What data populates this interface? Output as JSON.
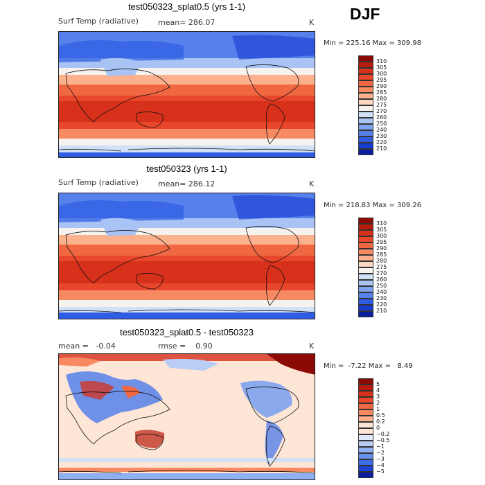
{
  "season": "DJF",
  "panels": [
    {
      "title": "test050323_splat0.5 (yrs 1-1)",
      "left_label": "Surf Temp (radiative)",
      "center_label": "mean= 286.07",
      "unit": "K",
      "minmax": "Min = 225.16 Max = 309.98",
      "colorbar": {
        "labels": [
          "310",
          "305",
          "300",
          "295",
          "290",
          "285",
          "280",
          "275",
          "270",
          "260",
          "250",
          "240",
          "230",
          "220",
          "210"
        ],
        "colors": [
          "#8b0a05",
          "#b81c0c",
          "#d7301b",
          "#e8472b",
          "#f06842",
          "#f78a62",
          "#fbb08e",
          "#fdd7c2",
          "#f6f2ee",
          "#cfe0f7",
          "#a9c4f4",
          "#7ea3ef",
          "#5680ea",
          "#2e5ce2",
          "#153bd0",
          "#0b1f9e"
        ]
      }
    },
    {
      "title": "test050323 (yrs 1-1)",
      "left_label": "Surf Temp (radiative)",
      "center_label": "mean= 286.12",
      "unit": "K",
      "minmax": "Min = 218.83 Max = 309.26",
      "colorbar": {
        "labels": [
          "310",
          "305",
          "300",
          "295",
          "290",
          "285",
          "280",
          "275",
          "270",
          "260",
          "250",
          "240",
          "230",
          "220",
          "210"
        ],
        "colors": [
          "#8b0a05",
          "#b81c0c",
          "#d7301b",
          "#e8472b",
          "#f06842",
          "#f78a62",
          "#fbb08e",
          "#fdd7c2",
          "#f6f2ee",
          "#cfe0f7",
          "#a9c4f4",
          "#7ea3ef",
          "#5680ea",
          "#2e5ce2",
          "#153bd0",
          "#0b1f9e"
        ]
      }
    },
    {
      "title": "test050323_splat0.5 - test050323",
      "left_label": "mean =   -0.04",
      "center_label": "rmse =    0.90",
      "unit": "K",
      "minmax": "Min =  -7.22 Max =   8.49",
      "colorbar": {
        "labels": [
          "5",
          "4",
          "3",
          "2",
          "1",
          "0.5",
          "0.2",
          "0",
          "−0.2",
          "−0.5",
          "−1",
          "−2",
          "−3",
          "−4",
          "−5"
        ],
        "colors": [
          "#8b0a05",
          "#b81c0c",
          "#d7301b",
          "#e8472b",
          "#f06842",
          "#f78a62",
          "#fbb08e",
          "#fde6d6",
          "#fde6d6",
          "#dfe8fa",
          "#b9cdf5",
          "#8fb0f1",
          "#6690ec",
          "#3d6de5",
          "#1b44d2",
          "#0b1f9e"
        ]
      }
    }
  ]
}
